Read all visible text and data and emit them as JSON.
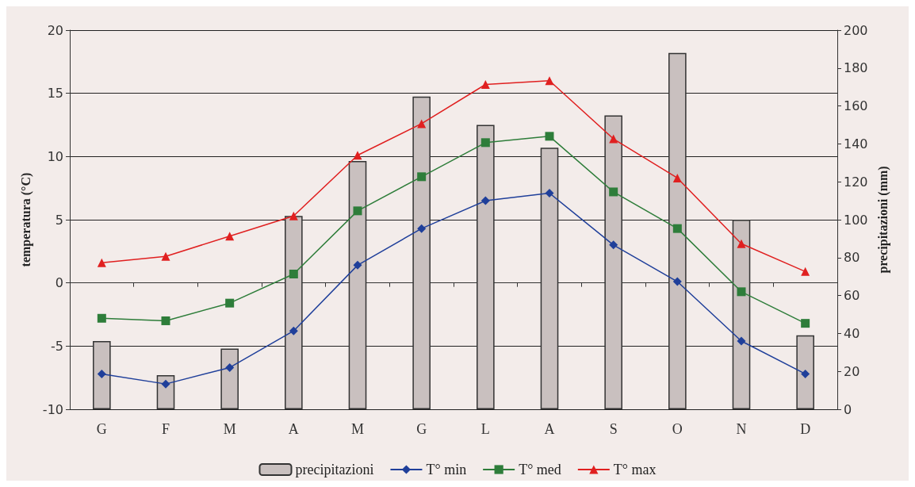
{
  "chart_data": {
    "type": "bar",
    "ylabel": "temperatura (°C)",
    "y2label": "precipitazioni (mm)",
    "categories": [
      "G",
      "F",
      "M",
      "A",
      "M",
      "G",
      "L",
      "A",
      "S",
      "O",
      "N",
      "D"
    ],
    "series": [
      {
        "name": "precipitazioni",
        "axis": "y2",
        "color": "#c9c0bf",
        "values": [
          36,
          18,
          32,
          102,
          131,
          165,
          150,
          138,
          155,
          188,
          100,
          39
        ]
      },
      {
        "name": "T° min",
        "type": "line",
        "color": "#1f3f9a",
        "marker": "diamond",
        "values": [
          -7.2,
          -8.0,
          -6.7,
          -3.8,
          1.4,
          4.3,
          6.5,
          7.1,
          3.0,
          0.1,
          -4.6,
          -7.2
        ]
      },
      {
        "name": "T° med",
        "type": "line",
        "color": "#2e7d3a",
        "marker": "square",
        "values": [
          -2.8,
          -3.0,
          -1.6,
          0.7,
          5.7,
          8.4,
          11.1,
          11.6,
          7.2,
          4.3,
          -0.7,
          -3.2
        ]
      },
      {
        "name": "T° max",
        "type": "line",
        "color": "#e02020",
        "marker": "triangle",
        "values": [
          1.6,
          2.1,
          3.7,
          5.3,
          10.1,
          12.6,
          15.7,
          16.0,
          11.4,
          8.3,
          3.1,
          0.9
        ]
      }
    ],
    "ylim": [
      -10,
      20
    ],
    "yticks": [
      -10,
      -5,
      0,
      5,
      10,
      15,
      20
    ],
    "y2lim": [
      0,
      200
    ],
    "y2ticks": [
      0,
      20,
      40,
      60,
      80,
      100,
      120,
      140,
      160,
      180,
      200
    ],
    "grid": "y",
    "legend": "bottom"
  }
}
